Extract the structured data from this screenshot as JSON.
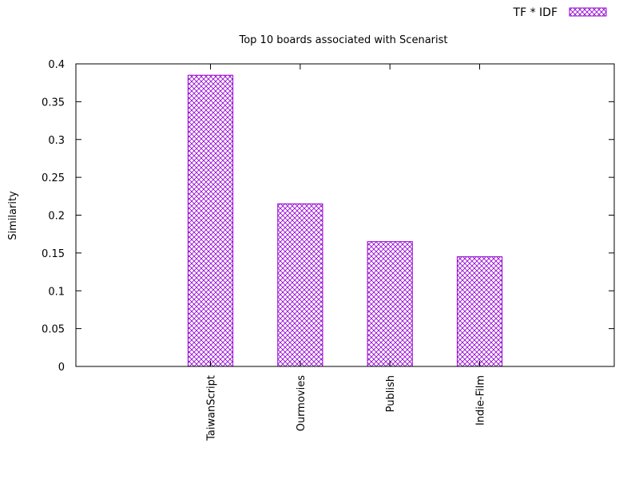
{
  "chart_data": {
    "type": "bar",
    "title": "Top 10 boards associated with Scenarist",
    "ylabel": "Similarity",
    "xlabel": "",
    "categories": [
      "TaiwanScript",
      "Ourmovies",
      "Publish",
      "Indie-Film"
    ],
    "series": [
      {
        "name": "TF * IDF",
        "values": [
          0.385,
          0.215,
          0.165,
          0.145
        ]
      }
    ],
    "ylim": [
      0,
      0.4
    ],
    "yticks": [
      "0",
      "0.05",
      "0.1",
      "0.15",
      "0.2",
      "0.25",
      "0.3",
      "0.35",
      "0.4"
    ],
    "xlim": [
      -1.5,
      4.5
    ],
    "grid": false,
    "legend_position": "top-right",
    "bar_color": "#9400d3",
    "bar_fill": "crosshatch"
  }
}
